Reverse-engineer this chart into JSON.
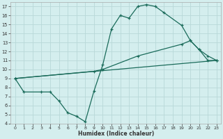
{
  "title": "",
  "xlabel": "Humidex (Indice chaleur)",
  "bg_color": "#d4eeee",
  "grid_color": "#b8d8d8",
  "line_color": "#1a6b5a",
  "xlim": [
    -0.5,
    23.5
  ],
  "ylim": [
    4,
    17.5
  ],
  "xticks": [
    0,
    1,
    2,
    3,
    4,
    5,
    6,
    7,
    8,
    9,
    10,
    11,
    12,
    13,
    14,
    15,
    16,
    17,
    18,
    19,
    20,
    21,
    22,
    23
  ],
  "yticks": [
    4,
    5,
    6,
    7,
    8,
    9,
    10,
    11,
    12,
    13,
    14,
    15,
    16,
    17
  ],
  "curve1_x": [
    0,
    1,
    3,
    4,
    5,
    6,
    7,
    8,
    9,
    10,
    11,
    12,
    13,
    14,
    15,
    16,
    17,
    19,
    20,
    21,
    22,
    23
  ],
  "curve1_y": [
    9.0,
    7.5,
    7.5,
    7.5,
    6.5,
    5.2,
    4.8,
    4.2,
    7.6,
    10.5,
    14.5,
    16.0,
    15.7,
    17.0,
    17.2,
    17.0,
    16.3,
    14.9,
    13.2,
    12.2,
    11.0,
    11.0
  ],
  "curve2_x": [
    0,
    23
  ],
  "curve2_y": [
    9.0,
    11.0
  ],
  "curve3_x": [
    0,
    9,
    10,
    14,
    19,
    20,
    21,
    22,
    23
  ],
  "curve3_y": [
    9.0,
    9.8,
    10.0,
    11.5,
    12.8,
    13.2,
    12.2,
    11.5,
    11.0
  ]
}
